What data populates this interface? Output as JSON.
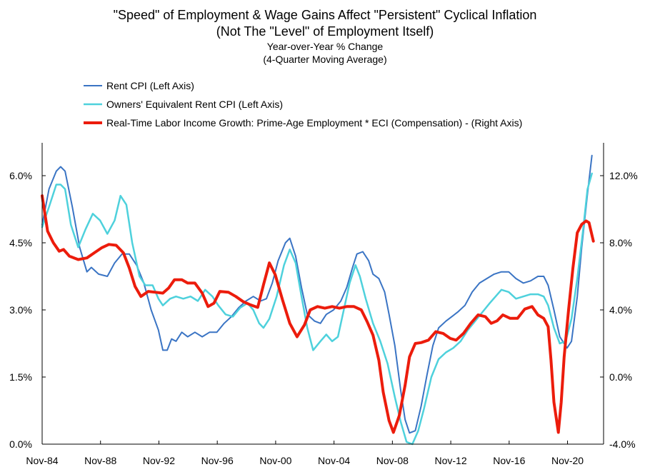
{
  "chart_data": {
    "type": "line",
    "title": "\"Speed\" of Employment & Wage Gains Affect \"Persistent\" Cyclical Inflation",
    "subtitle": "(Not The \"Level\" of Employment Itself)",
    "subtitle2": "Year-over-Year % Change",
    "subtitle3": "(4-Quarter Moving Average)",
    "x_ticks": [
      "Nov-84",
      "Nov-88",
      "Nov-92",
      "Nov-96",
      "Nov-00",
      "Nov-04",
      "Nov-08",
      "Nov-12",
      "Nov-16",
      "Nov-20"
    ],
    "xlim": [
      1984.83,
      2023.3
    ],
    "y_left": {
      "ticks": [
        "0.0%",
        "1.5%",
        "3.0%",
        "4.5%",
        "6.0%"
      ],
      "ylim": [
        0,
        6.0
      ]
    },
    "y_right": {
      "ticks": [
        "-4.0%",
        "0.0%",
        "4.0%",
        "8.0%",
        "12.0%"
      ],
      "ylim": [
        -4,
        12
      ]
    },
    "grid": false,
    "legend_position": "top-left",
    "series": [
      {
        "name": "Rent CPI (Left Axis)",
        "axis": "left",
        "color": "#3a74c4",
        "width": 2,
        "points": [
          [
            1984.83,
            4.9
          ],
          [
            1985.3,
            5.7
          ],
          [
            1985.8,
            6.1
          ],
          [
            1986.1,
            6.2
          ],
          [
            1986.4,
            6.1
          ],
          [
            1986.9,
            5.3
          ],
          [
            1987.4,
            4.4
          ],
          [
            1987.9,
            3.85
          ],
          [
            1988.2,
            3.95
          ],
          [
            1988.7,
            3.8
          ],
          [
            1989.3,
            3.75
          ],
          [
            1989.8,
            4.05
          ],
          [
            1990.3,
            4.25
          ],
          [
            1990.8,
            4.25
          ],
          [
            1991.3,
            4.0
          ],
          [
            1991.8,
            3.6
          ],
          [
            1992.3,
            3.0
          ],
          [
            1992.8,
            2.55
          ],
          [
            1993.1,
            2.1
          ],
          [
            1993.4,
            2.1
          ],
          [
            1993.7,
            2.35
          ],
          [
            1994.0,
            2.3
          ],
          [
            1994.4,
            2.5
          ],
          [
            1994.8,
            2.4
          ],
          [
            1995.3,
            2.5
          ],
          [
            1995.8,
            2.4
          ],
          [
            1996.3,
            2.5
          ],
          [
            1996.8,
            2.5
          ],
          [
            1997.3,
            2.7
          ],
          [
            1997.8,
            2.85
          ],
          [
            1998.3,
            3.05
          ],
          [
            1998.8,
            3.2
          ],
          [
            1999.3,
            3.3
          ],
          [
            1999.8,
            3.2
          ],
          [
            2000.2,
            3.25
          ],
          [
            2000.6,
            3.6
          ],
          [
            2001.0,
            4.1
          ],
          [
            2001.5,
            4.5
          ],
          [
            2001.8,
            4.6
          ],
          [
            2002.2,
            4.2
          ],
          [
            2002.6,
            3.5
          ],
          [
            2003.0,
            2.9
          ],
          [
            2003.5,
            2.75
          ],
          [
            2003.9,
            2.7
          ],
          [
            2004.3,
            2.9
          ],
          [
            2004.8,
            3.0
          ],
          [
            2005.3,
            3.2
          ],
          [
            2005.7,
            3.5
          ],
          [
            2006.1,
            3.95
          ],
          [
            2006.4,
            4.25
          ],
          [
            2006.8,
            4.3
          ],
          [
            2007.2,
            4.1
          ],
          [
            2007.5,
            3.8
          ],
          [
            2007.9,
            3.7
          ],
          [
            2008.3,
            3.4
          ],
          [
            2008.6,
            2.9
          ],
          [
            2009.0,
            2.2
          ],
          [
            2009.4,
            1.2
          ],
          [
            2009.7,
            0.55
          ],
          [
            2010.0,
            0.25
          ],
          [
            2010.4,
            0.3
          ],
          [
            2010.8,
            0.85
          ],
          [
            2011.2,
            1.55
          ],
          [
            2011.6,
            2.2
          ],
          [
            2012.0,
            2.6
          ],
          [
            2012.5,
            2.75
          ],
          [
            2012.9,
            2.85
          ],
          [
            2013.3,
            2.95
          ],
          [
            2013.8,
            3.1
          ],
          [
            2014.3,
            3.4
          ],
          [
            2014.8,
            3.6
          ],
          [
            2015.3,
            3.7
          ],
          [
            2015.8,
            3.8
          ],
          [
            2016.3,
            3.85
          ],
          [
            2016.8,
            3.85
          ],
          [
            2017.3,
            3.7
          ],
          [
            2017.8,
            3.6
          ],
          [
            2018.3,
            3.65
          ],
          [
            2018.8,
            3.75
          ],
          [
            2019.2,
            3.75
          ],
          [
            2019.5,
            3.55
          ],
          [
            2019.9,
            3.0
          ],
          [
            2020.3,
            2.4
          ],
          [
            2020.8,
            2.15
          ],
          [
            2021.1,
            2.3
          ],
          [
            2021.5,
            3.3
          ],
          [
            2021.8,
            4.4
          ],
          [
            2022.2,
            5.6
          ],
          [
            2022.5,
            6.45
          ]
        ]
      },
      {
        "name": "Owners' Equivalent Rent CPI (Left Axis)",
        "axis": "left",
        "color": "#4ed1dc",
        "width": 2.5,
        "points": [
          [
            1984.83,
            4.85
          ],
          [
            1985.3,
            5.3
          ],
          [
            1985.8,
            5.8
          ],
          [
            1986.1,
            5.8
          ],
          [
            1986.4,
            5.7
          ],
          [
            1986.8,
            4.9
          ],
          [
            1987.3,
            4.4
          ],
          [
            1987.8,
            4.8
          ],
          [
            1988.3,
            5.15
          ],
          [
            1988.8,
            5.0
          ],
          [
            1989.3,
            4.7
          ],
          [
            1989.8,
            5.0
          ],
          [
            1990.2,
            5.55
          ],
          [
            1990.6,
            5.35
          ],
          [
            1991.0,
            4.5
          ],
          [
            1991.5,
            3.75
          ],
          [
            1991.9,
            3.55
          ],
          [
            1992.4,
            3.55
          ],
          [
            1992.8,
            3.25
          ],
          [
            1993.1,
            3.1
          ],
          [
            1993.6,
            3.25
          ],
          [
            1994.0,
            3.3
          ],
          [
            1994.5,
            3.25
          ],
          [
            1995.0,
            3.3
          ],
          [
            1995.5,
            3.2
          ],
          [
            1996.0,
            3.45
          ],
          [
            1996.5,
            3.3
          ],
          [
            1996.9,
            3.1
          ],
          [
            1997.4,
            2.9
          ],
          [
            1997.9,
            2.85
          ],
          [
            1998.4,
            3.05
          ],
          [
            1998.9,
            3.15
          ],
          [
            1999.3,
            3.0
          ],
          [
            1999.7,
            2.7
          ],
          [
            2000.0,
            2.6
          ],
          [
            2000.4,
            2.8
          ],
          [
            2000.9,
            3.3
          ],
          [
            2001.4,
            4.0
          ],
          [
            2001.8,
            4.35
          ],
          [
            2002.2,
            4.05
          ],
          [
            2002.6,
            3.3
          ],
          [
            2003.0,
            2.6
          ],
          [
            2003.4,
            2.1
          ],
          [
            2003.9,
            2.3
          ],
          [
            2004.3,
            2.45
          ],
          [
            2004.7,
            2.3
          ],
          [
            2005.1,
            2.4
          ],
          [
            2005.5,
            3.0
          ],
          [
            2005.9,
            3.6
          ],
          [
            2006.3,
            4.0
          ],
          [
            2006.6,
            3.75
          ],
          [
            2007.0,
            3.25
          ],
          [
            2007.5,
            2.7
          ],
          [
            2008.0,
            2.3
          ],
          [
            2008.5,
            1.8
          ],
          [
            2009.0,
            1.05
          ],
          [
            2009.4,
            0.5
          ],
          [
            2009.8,
            0.05
          ],
          [
            2010.2,
            0.0
          ],
          [
            2010.6,
            0.3
          ],
          [
            2011.0,
            0.8
          ],
          [
            2011.5,
            1.5
          ],
          [
            2012.0,
            1.9
          ],
          [
            2012.5,
            2.05
          ],
          [
            2013.0,
            2.15
          ],
          [
            2013.5,
            2.3
          ],
          [
            2014.0,
            2.55
          ],
          [
            2014.5,
            2.75
          ],
          [
            2015.0,
            2.95
          ],
          [
            2015.5,
            3.15
          ],
          [
            2015.9,
            3.3
          ],
          [
            2016.3,
            3.45
          ],
          [
            2016.8,
            3.4
          ],
          [
            2017.3,
            3.25
          ],
          [
            2017.8,
            3.3
          ],
          [
            2018.3,
            3.35
          ],
          [
            2018.8,
            3.35
          ],
          [
            2019.2,
            3.3
          ],
          [
            2019.5,
            3.1
          ],
          [
            2019.9,
            2.6
          ],
          [
            2020.3,
            2.25
          ],
          [
            2020.7,
            2.3
          ],
          [
            2021.1,
            2.8
          ],
          [
            2021.5,
            3.7
          ],
          [
            2021.9,
            4.8
          ],
          [
            2022.2,
            5.7
          ],
          [
            2022.5,
            6.05
          ]
        ]
      },
      {
        "name": "Real-Time Labor Income Growth: Prime-Age Employment * ECI (Compensation) - (Right Axis)",
        "axis": "right",
        "color": "#ec1c0c",
        "width": 4,
        "points": [
          [
            1984.83,
            10.8
          ],
          [
            1985.2,
            8.7
          ],
          [
            1985.6,
            8.0
          ],
          [
            1986.0,
            7.5
          ],
          [
            1986.3,
            7.6
          ],
          [
            1986.7,
            7.2
          ],
          [
            1987.3,
            7.0
          ],
          [
            1987.9,
            7.1
          ],
          [
            1988.4,
            7.4
          ],
          [
            1988.9,
            7.7
          ],
          [
            1989.4,
            7.9
          ],
          [
            1989.9,
            7.85
          ],
          [
            1990.4,
            7.4
          ],
          [
            1990.8,
            6.5
          ],
          [
            1991.2,
            5.4
          ],
          [
            1991.6,
            4.8
          ],
          [
            1992.1,
            5.1
          ],
          [
            1992.6,
            5.05
          ],
          [
            1993.1,
            5.0
          ],
          [
            1993.5,
            5.3
          ],
          [
            1993.9,
            5.8
          ],
          [
            1994.4,
            5.8
          ],
          [
            1994.8,
            5.6
          ],
          [
            1995.3,
            5.6
          ],
          [
            1995.8,
            5.0
          ],
          [
            1996.2,
            4.2
          ],
          [
            1996.6,
            4.4
          ],
          [
            1997.0,
            5.1
          ],
          [
            1997.6,
            5.05
          ],
          [
            1998.1,
            4.8
          ],
          [
            1998.6,
            4.5
          ],
          [
            1999.1,
            4.3
          ],
          [
            1999.6,
            4.15
          ],
          [
            2000.0,
            5.5
          ],
          [
            2000.4,
            6.8
          ],
          [
            2000.8,
            6.1
          ],
          [
            2001.3,
            4.6
          ],
          [
            2001.8,
            3.2
          ],
          [
            2002.3,
            2.4
          ],
          [
            2002.8,
            3.1
          ],
          [
            2003.2,
            4.0
          ],
          [
            2003.7,
            4.2
          ],
          [
            2004.2,
            4.1
          ],
          [
            2004.7,
            4.2
          ],
          [
            2005.2,
            4.1
          ],
          [
            2005.7,
            4.2
          ],
          [
            2006.2,
            4.2
          ],
          [
            2006.7,
            4.0
          ],
          [
            2007.1,
            3.3
          ],
          [
            2007.5,
            2.5
          ],
          [
            2007.9,
            1.0
          ],
          [
            2008.2,
            -0.9
          ],
          [
            2008.6,
            -2.6
          ],
          [
            2008.9,
            -3.3
          ],
          [
            2009.3,
            -2.3
          ],
          [
            2009.7,
            -0.5
          ],
          [
            2010.0,
            1.2
          ],
          [
            2010.4,
            2.0
          ],
          [
            2010.8,
            2.05
          ],
          [
            2011.3,
            2.2
          ],
          [
            2011.8,
            2.7
          ],
          [
            2012.3,
            2.6
          ],
          [
            2012.8,
            2.3
          ],
          [
            2013.2,
            2.2
          ],
          [
            2013.7,
            2.6
          ],
          [
            2014.2,
            3.2
          ],
          [
            2014.7,
            3.7
          ],
          [
            2015.2,
            3.6
          ],
          [
            2015.6,
            3.2
          ],
          [
            2016.0,
            3.35
          ],
          [
            2016.4,
            3.7
          ],
          [
            2016.9,
            3.5
          ],
          [
            2017.4,
            3.5
          ],
          [
            2017.9,
            4.05
          ],
          [
            2018.4,
            4.2
          ],
          [
            2018.8,
            3.7
          ],
          [
            2019.2,
            3.5
          ],
          [
            2019.5,
            3.0
          ],
          [
            2019.7,
            1.0
          ],
          [
            2019.9,
            -1.5
          ],
          [
            2020.2,
            -3.3
          ],
          [
            2020.4,
            -1.5
          ],
          [
            2020.6,
            1.2
          ],
          [
            2020.9,
            4.0
          ],
          [
            2021.2,
            6.5
          ],
          [
            2021.5,
            8.6
          ],
          [
            2021.8,
            9.1
          ],
          [
            2022.1,
            9.3
          ],
          [
            2022.3,
            9.2
          ],
          [
            2022.6,
            8.1
          ]
        ]
      }
    ]
  }
}
